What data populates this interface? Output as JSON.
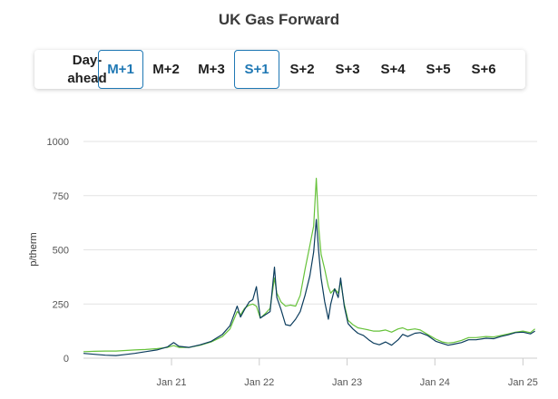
{
  "title": "UK Gas Forward",
  "tabs": [
    {
      "label": "Day-ahead",
      "active": false
    },
    {
      "label": "M+1",
      "active": true
    },
    {
      "label": "M+2",
      "active": false
    },
    {
      "label": "M+3",
      "active": false
    },
    {
      "label": "S+1",
      "active": true
    },
    {
      "label": "S+2",
      "active": false
    },
    {
      "label": "S+3",
      "active": false
    },
    {
      "label": "S+4",
      "active": false
    },
    {
      "label": "S+5",
      "active": false
    },
    {
      "label": "S+6",
      "active": false
    }
  ],
  "colors": {
    "accent": "#1f78b4",
    "series_dark": "#0b3c5d",
    "series_green": "#66c23a",
    "grid": "#e3e3e3"
  },
  "chart_data": {
    "type": "line",
    "title": "UK Gas Forward",
    "ylabel": "p/therm",
    "xlabel": "",
    "ylim": [
      0,
      1000
    ],
    "yticks": [
      0,
      250,
      500,
      750,
      1000
    ],
    "xticks": [
      "Jan 21",
      "Jan 22",
      "Jan 23",
      "Jan 24",
      "Jan 25"
    ],
    "xtick_dates": [
      "2021-01-01",
      "2022-01-01",
      "2023-01-01",
      "2024-01-01",
      "2025-01-01"
    ],
    "xlim": [
      "2020-01-01",
      "2025-03-01"
    ],
    "grid": true,
    "series": [
      {
        "color": "#0b3c5d",
        "points": [
          [
            "2020-01-01",
            22
          ],
          [
            "2020-02-15",
            18
          ],
          [
            "2020-04-01",
            14
          ],
          [
            "2020-05-15",
            12
          ],
          [
            "2020-06-15",
            16
          ],
          [
            "2020-08-01",
            22
          ],
          [
            "2020-09-15",
            30
          ],
          [
            "2020-11-01",
            38
          ],
          [
            "2020-12-15",
            52
          ],
          [
            "2021-01-10",
            72
          ],
          [
            "2021-02-01",
            55
          ],
          [
            "2021-03-15",
            50
          ],
          [
            "2021-05-01",
            62
          ],
          [
            "2021-06-15",
            78
          ],
          [
            "2021-08-01",
            110
          ],
          [
            "2021-09-01",
            150
          ],
          [
            "2021-10-01",
            240
          ],
          [
            "2021-10-15",
            190
          ],
          [
            "2021-11-01",
            225
          ],
          [
            "2021-11-20",
            260
          ],
          [
            "2021-12-05",
            270
          ],
          [
            "2021-12-20",
            330
          ],
          [
            "2022-01-05",
            185
          ],
          [
            "2022-01-25",
            200
          ],
          [
            "2022-02-15",
            215
          ],
          [
            "2022-03-05",
            420
          ],
          [
            "2022-03-15",
            280
          ],
          [
            "2022-04-01",
            225
          ],
          [
            "2022-04-20",
            155
          ],
          [
            "2022-05-10",
            150
          ],
          [
            "2022-06-01",
            180
          ],
          [
            "2022-06-20",
            215
          ],
          [
            "2022-07-10",
            290
          ],
          [
            "2022-07-30",
            380
          ],
          [
            "2022-08-15",
            490
          ],
          [
            "2022-08-26",
            640
          ],
          [
            "2022-09-05",
            490
          ],
          [
            "2022-09-15",
            370
          ],
          [
            "2022-09-30",
            260
          ],
          [
            "2022-10-15",
            180
          ],
          [
            "2022-10-25",
            250
          ],
          [
            "2022-11-10",
            320
          ],
          [
            "2022-11-25",
            280
          ],
          [
            "2022-12-05",
            370
          ],
          [
            "2022-12-20",
            240
          ],
          [
            "2023-01-05",
            160
          ],
          [
            "2023-01-25",
            135
          ],
          [
            "2023-02-15",
            115
          ],
          [
            "2023-03-10",
            105
          ],
          [
            "2023-04-01",
            85
          ],
          [
            "2023-04-20",
            70
          ],
          [
            "2023-05-15",
            62
          ],
          [
            "2023-06-10",
            75
          ],
          [
            "2023-07-05",
            60
          ],
          [
            "2023-08-01",
            85
          ],
          [
            "2023-08-20",
            110
          ],
          [
            "2023-09-10",
            100
          ],
          [
            "2023-10-10",
            115
          ],
          [
            "2023-11-01",
            118
          ],
          [
            "2023-12-01",
            105
          ],
          [
            "2024-01-05",
            78
          ],
          [
            "2024-02-01",
            68
          ],
          [
            "2024-02-25",
            60
          ],
          [
            "2024-03-20",
            65
          ],
          [
            "2024-04-20",
            72
          ],
          [
            "2024-05-20",
            85
          ],
          [
            "2024-06-20",
            85
          ],
          [
            "2024-08-01",
            92
          ],
          [
            "2024-09-01",
            90
          ],
          [
            "2024-10-01",
            100
          ],
          [
            "2024-11-01",
            108
          ],
          [
            "2024-12-01",
            118
          ],
          [
            "2025-01-01",
            120
          ],
          [
            "2025-02-01",
            112
          ],
          [
            "2025-02-20",
            125
          ]
        ]
      },
      {
        "color": "#66c23a",
        "points": [
          [
            "2020-01-01",
            30
          ],
          [
            "2020-02-15",
            32
          ],
          [
            "2020-04-01",
            33
          ],
          [
            "2020-05-15",
            33
          ],
          [
            "2020-06-15",
            35
          ],
          [
            "2020-08-01",
            38
          ],
          [
            "2020-09-15",
            40
          ],
          [
            "2020-11-01",
            44
          ],
          [
            "2020-12-15",
            50
          ],
          [
            "2021-01-10",
            58
          ],
          [
            "2021-02-01",
            50
          ],
          [
            "2021-03-15",
            50
          ],
          [
            "2021-05-01",
            60
          ],
          [
            "2021-06-15",
            75
          ],
          [
            "2021-08-01",
            100
          ],
          [
            "2021-09-01",
            135
          ],
          [
            "2021-10-01",
            215
          ],
          [
            "2021-10-15",
            200
          ],
          [
            "2021-11-01",
            230
          ],
          [
            "2021-11-20",
            245
          ],
          [
            "2021-12-05",
            250
          ],
          [
            "2021-12-20",
            240
          ],
          [
            "2022-01-05",
            185
          ],
          [
            "2022-01-25",
            205
          ],
          [
            "2022-02-15",
            230
          ],
          [
            "2022-03-05",
            370
          ],
          [
            "2022-03-15",
            300
          ],
          [
            "2022-04-01",
            260
          ],
          [
            "2022-04-20",
            240
          ],
          [
            "2022-05-10",
            245
          ],
          [
            "2022-06-01",
            240
          ],
          [
            "2022-06-20",
            290
          ],
          [
            "2022-07-10",
            410
          ],
          [
            "2022-07-30",
            520
          ],
          [
            "2022-08-15",
            610
          ],
          [
            "2022-08-26",
            830
          ],
          [
            "2022-09-05",
            600
          ],
          [
            "2022-09-15",
            480
          ],
          [
            "2022-09-30",
            410
          ],
          [
            "2022-10-15",
            330
          ],
          [
            "2022-10-25",
            300
          ],
          [
            "2022-11-10",
            320
          ],
          [
            "2022-11-25",
            300
          ],
          [
            "2022-12-05",
            355
          ],
          [
            "2022-12-20",
            250
          ],
          [
            "2023-01-05",
            175
          ],
          [
            "2023-01-25",
            155
          ],
          [
            "2023-02-15",
            140
          ],
          [
            "2023-03-10",
            135
          ],
          [
            "2023-04-01",
            130
          ],
          [
            "2023-04-20",
            125
          ],
          [
            "2023-05-15",
            125
          ],
          [
            "2023-06-10",
            130
          ],
          [
            "2023-07-05",
            120
          ],
          [
            "2023-08-01",
            135
          ],
          [
            "2023-08-20",
            140
          ],
          [
            "2023-09-10",
            130
          ],
          [
            "2023-10-10",
            135
          ],
          [
            "2023-11-01",
            130
          ],
          [
            "2023-12-01",
            110
          ],
          [
            "2024-01-05",
            88
          ],
          [
            "2024-02-01",
            75
          ],
          [
            "2024-02-25",
            70
          ],
          [
            "2024-03-20",
            73
          ],
          [
            "2024-04-20",
            82
          ],
          [
            "2024-05-20",
            95
          ],
          [
            "2024-06-20",
            95
          ],
          [
            "2024-08-01",
            100
          ],
          [
            "2024-09-01",
            98
          ],
          [
            "2024-10-01",
            105
          ],
          [
            "2024-11-01",
            112
          ],
          [
            "2024-12-01",
            120
          ],
          [
            "2025-01-01",
            125
          ],
          [
            "2025-02-01",
            118
          ],
          [
            "2025-02-20",
            135
          ]
        ]
      }
    ]
  }
}
